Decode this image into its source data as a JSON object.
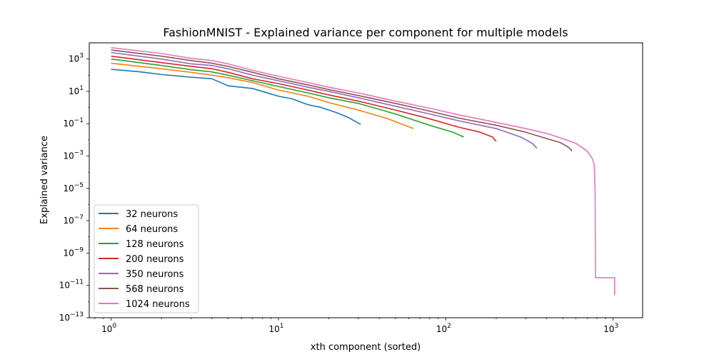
{
  "chart_data": {
    "type": "line",
    "title": "FashionMNIST - Explained variance per component for multiple models",
    "xlabel": "xth component (sorted)",
    "ylabel": "Explained variance",
    "xscale": "log",
    "yscale": "log",
    "xlim": [
      0.74,
      1500
    ],
    "ylim": [
      1e-13,
      10000.0
    ],
    "x_ticks": [
      {
        "value": 1,
        "base": "10",
        "exp": "0"
      },
      {
        "value": 10,
        "base": "10",
        "exp": "1"
      },
      {
        "value": 100,
        "base": "10",
        "exp": "2"
      },
      {
        "value": 1000,
        "base": "10",
        "exp": "3"
      }
    ],
    "y_ticks": [
      {
        "value": 1000.0,
        "base": "10",
        "exp": "3"
      },
      {
        "value": 10.0,
        "base": "10",
        "exp": "1"
      },
      {
        "value": 0.1,
        "base": "10",
        "exp": "−1"
      },
      {
        "value": 0.001,
        "base": "10",
        "exp": "−3"
      },
      {
        "value": 1e-05,
        "base": "10",
        "exp": "−5"
      },
      {
        "value": 1e-07,
        "base": "10",
        "exp": "−7"
      },
      {
        "value": 1e-09,
        "base": "10",
        "exp": "−9"
      },
      {
        "value": 1e-11,
        "base": "10",
        "exp": "−11"
      },
      {
        "value": 1e-13,
        "base": "10",
        "exp": "−13"
      }
    ],
    "legend_position": "lower-left",
    "grid": false,
    "series": [
      {
        "name": "32 neurons",
        "color": "#1f77b4",
        "x": [
          1,
          1.5,
          2,
          3,
          4,
          5,
          7,
          10,
          12,
          15,
          18,
          22,
          26,
          31
        ],
        "y": [
          230,
          160,
          110,
          75,
          60,
          22,
          15,
          5,
          3.5,
          1.5,
          1.0,
          0.5,
          0.25,
          0.09
        ]
      },
      {
        "name": "64 neurons",
        "color": "#ff7f0e",
        "x": [
          1,
          2,
          3,
          4,
          5,
          7,
          10,
          15,
          20,
          30,
          45,
          64
        ],
        "y": [
          550,
          250,
          150,
          100,
          70,
          35,
          12,
          5,
          2,
          0.7,
          0.2,
          0.05
        ]
      },
      {
        "name": "128 neurons",
        "color": "#2ca02c",
        "x": [
          1,
          2,
          3,
          4,
          5,
          7,
          10,
          15,
          20,
          30,
          50,
          80,
          110,
          128
        ],
        "y": [
          1000,
          400,
          220,
          160,
          100,
          45,
          20,
          8,
          4,
          1.8,
          0.4,
          0.08,
          0.03,
          0.015
        ]
      },
      {
        "name": "200 neurons",
        "color": "#d62728",
        "x": [
          1,
          2,
          3,
          4,
          5,
          7,
          10,
          15,
          20,
          30,
          50,
          80,
          120,
          160,
          190,
          200
        ],
        "y": [
          1500,
          600,
          350,
          250,
          150,
          60,
          30,
          12,
          6,
          2.5,
          0.7,
          0.2,
          0.06,
          0.03,
          0.015,
          0.008
        ]
      },
      {
        "name": "350 neurons",
        "color": "#9467bd",
        "x": [
          1,
          2,
          3,
          4,
          5,
          7,
          10,
          15,
          20,
          30,
          50,
          80,
          120,
          200,
          280,
          330,
          350
        ],
        "y": [
          2500,
          1000,
          500,
          400,
          250,
          100,
          45,
          18,
          10,
          4,
          1.2,
          0.4,
          0.15,
          0.05,
          0.015,
          0.006,
          0.003
        ]
      },
      {
        "name": "568 neurons",
        "color": "#8c564b",
        "x": [
          1,
          2,
          3,
          4,
          5,
          7,
          10,
          15,
          20,
          30,
          50,
          80,
          120,
          200,
          300,
          400,
          480,
          530,
          560,
          568
        ],
        "y": [
          3600,
          1500,
          800,
          550,
          350,
          150,
          60,
          25,
          13,
          5.5,
          1.8,
          0.6,
          0.22,
          0.08,
          0.03,
          0.012,
          0.007,
          0.004,
          0.0025,
          0.002
        ]
      },
      {
        "name": "1024 neurons",
        "color": "#e377c2",
        "x": [
          1,
          2,
          3,
          4,
          5,
          7,
          10,
          15,
          20,
          30,
          50,
          80,
          120,
          200,
          300,
          400,
          500,
          600,
          700,
          750,
          770,
          780,
          785,
          785,
          1020,
          1020
        ],
        "y": [
          5000,
          2200,
          1100,
          800,
          500,
          200,
          85,
          35,
          18,
          8,
          2.5,
          0.9,
          0.35,
          0.12,
          0.05,
          0.025,
          0.012,
          0.006,
          0.002,
          0.0007,
          0.0003,
          1e-05,
          3e-11,
          3e-11,
          3e-11,
          2.5e-12
        ]
      }
    ]
  }
}
